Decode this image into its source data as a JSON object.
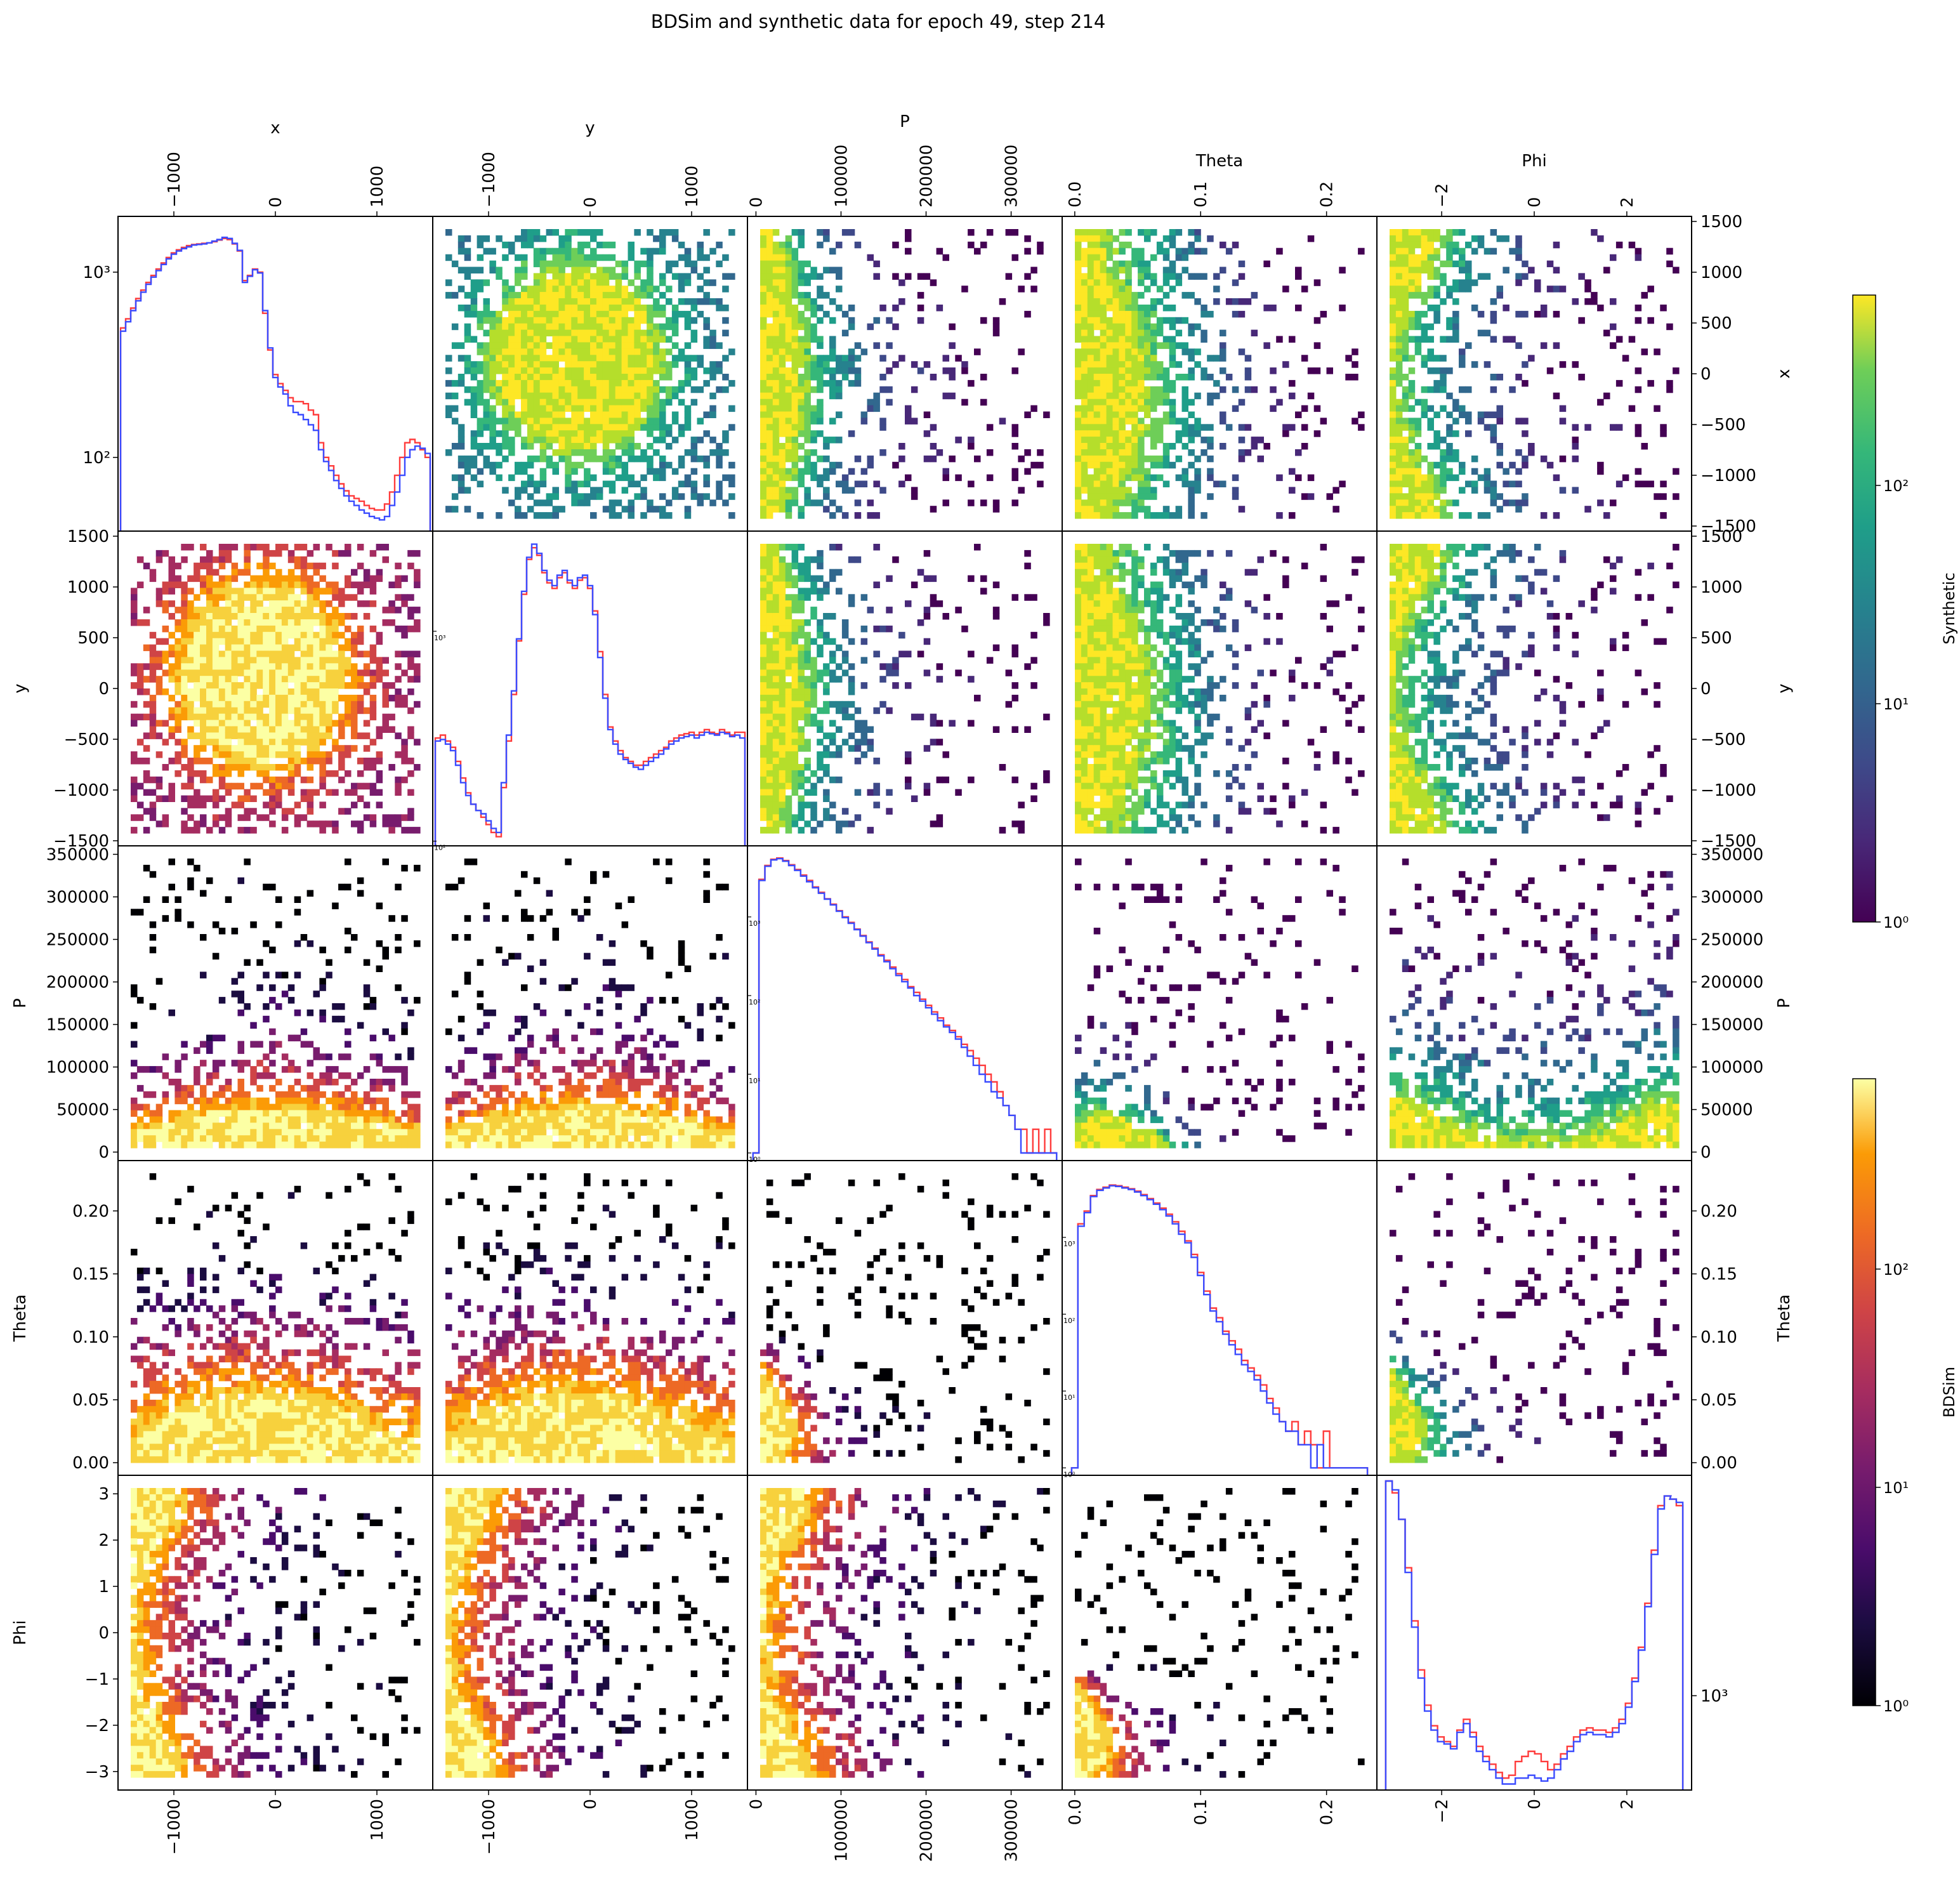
{
  "title": "BDSim and synthetic data for epoch 49, step 214",
  "colors": {
    "bdsim_line": "#ff3b3b",
    "synthetic_line": "#3a4bff",
    "frame": "#000000"
  },
  "colorbars": [
    {
      "label": "Synthetic",
      "cmap": "viridis",
      "ticks": [
        "10⁰",
        "10¹",
        "10²"
      ],
      "scale": "log",
      "range": [
        1,
        800
      ]
    },
    {
      "label": "BDSim",
      "cmap": "inferno",
      "ticks": [
        "10⁰",
        "10¹",
        "10²"
      ],
      "scale": "log",
      "range": [
        1,
        800
      ]
    }
  ],
  "chart_data": {
    "type": "heatmap",
    "description_layout": "5x5 pair grid: upper triangle = Synthetic 2D histograms, lower triangle = BDSim 2D histograms, diagonal = 1D histograms (red = BDSim, blue = Synthetic) with log y-scale",
    "variables": [
      {
        "name": "x",
        "range": [
          -1550,
          1550
        ],
        "ticks": [
          -1000,
          0,
          1000
        ],
        "tick_labels": [
          "−1000",
          "0",
          "1000"
        ],
        "y_ticks_2d": [
          -1500,
          -1000,
          -500,
          0,
          500,
          1000,
          1500
        ],
        "y_tick_labels_2d": [
          "−1500",
          "−1000",
          "−500",
          "0",
          "500",
          "1000",
          "1500"
        ]
      },
      {
        "name": "y",
        "range": [
          -1550,
          1550
        ],
        "ticks": [
          -1000,
          0,
          1000
        ],
        "tick_labels": [
          "−1000",
          "0",
          "1000"
        ],
        "y_ticks_2d": [
          -1500,
          -1000,
          -500,
          0,
          500,
          1000,
          1500
        ],
        "y_tick_labels_2d": [
          "−1500",
          "−1000",
          "−500",
          "0",
          "500",
          "1000",
          "1500"
        ]
      },
      {
        "name": "P",
        "range": [
          -10000,
          360000
        ],
        "ticks": [
          0,
          100000,
          200000,
          300000
        ],
        "tick_labels": [
          "0",
          "100000",
          "200000",
          "300000"
        ],
        "y_ticks_2d": [
          0,
          50000,
          100000,
          150000,
          200000,
          250000,
          300000,
          350000
        ],
        "y_tick_labels_2d": [
          "0",
          "50000",
          "100000",
          "150000",
          "200000",
          "250000",
          "300000",
          "350000"
        ]
      },
      {
        "name": "Theta",
        "range": [
          -0.01,
          0.24
        ],
        "ticks": [
          0,
          0.1,
          0.2
        ],
        "tick_labels": [
          "0.0",
          "0.1",
          "0.2"
        ],
        "y_ticks_2d": [
          0,
          0.05,
          0.1,
          0.15,
          0.2
        ],
        "y_tick_labels_2d": [
          "0.00",
          "0.05",
          "0.10",
          "0.15",
          "0.20"
        ]
      },
      {
        "name": "Phi",
        "range": [
          -3.4,
          3.4
        ],
        "ticks": [
          -2,
          0,
          2
        ],
        "tick_labels": [
          "−2",
          "0",
          "2"
        ],
        "y_ticks_2d": [
          -3,
          -2,
          -1,
          0,
          1,
          2,
          3
        ],
        "y_tick_labels_2d": [
          "−3",
          "−2",
          "−1",
          "0",
          "1",
          "2",
          "3"
        ]
      }
    ],
    "diagonal": [
      {
        "variable": "x",
        "log_range": [
          40,
          2000
        ],
        "y_ticks": [
          100,
          1000
        ],
        "y_tick_labels": [
          "10²",
          "10³"
        ],
        "x": [
          -1500,
          -1450,
          -1400,
          -1350,
          -1300,
          -1250,
          -1200,
          -1150,
          -1100,
          -1050,
          -1000,
          -950,
          -900,
          -850,
          -800,
          -750,
          -700,
          -650,
          -600,
          -550,
          -500,
          -450,
          -400,
          -350,
          -300,
          -250,
          -200,
          -150,
          -100,
          -50,
          0,
          50,
          100,
          150,
          200,
          250,
          300,
          350,
          400,
          450,
          500,
          550,
          600,
          650,
          700,
          750,
          800,
          850,
          900,
          950,
          1000,
          1050,
          1100,
          1150,
          1200,
          1250,
          1300,
          1350,
          1400,
          1450,
          1500
        ],
        "bdsim": [
          500,
          560,
          640,
          720,
          800,
          880,
          960,
          1040,
          1120,
          1200,
          1270,
          1320,
          1360,
          1390,
          1410,
          1420,
          1430,
          1440,
          1460,
          1490,
          1520,
          1500,
          1420,
          1300,
          900,
          960,
          1040,
          1000,
          600,
          380,
          280,
          250,
          230,
          210,
          200,
          200,
          195,
          180,
          170,
          120,
          100,
          90,
          80,
          72,
          66,
          62,
          60,
          58,
          55,
          53,
          52,
          52,
          56,
          65,
          80,
          100,
          120,
          125,
          120,
          110,
          100
        ],
        "synthetic": [
          480,
          540,
          620,
          700,
          780,
          860,
          940,
          1020,
          1100,
          1180,
          1250,
          1300,
          1340,
          1370,
          1400,
          1410,
          1420,
          1440,
          1470,
          1500,
          1540,
          1520,
          1430,
          1310,
          880,
          950,
          1030,
          990,
          620,
          390,
          270,
          240,
          220,
          190,
          175,
          170,
          160,
          150,
          140,
          110,
          95,
          85,
          75,
          68,
          62,
          58,
          55,
          52,
          50,
          48,
          47,
          46,
          48,
          55,
          65,
          80,
          100,
          110,
          115,
          112,
          105
        ]
      },
      {
        "variable": "y",
        "log_range": [
          95,
          3000
        ],
        "y_ticks": [
          100,
          1000
        ],
        "y_tick_labels": [
          "10²",
          "10³"
        ],
        "x": [
          -1500,
          -1450,
          -1400,
          -1350,
          -1300,
          -1250,
          -1200,
          -1150,
          -1100,
          -1050,
          -1000,
          -950,
          -900,
          -850,
          -800,
          -750,
          -700,
          -650,
          -600,
          -550,
          -500,
          -450,
          -400,
          -350,
          -300,
          -250,
          -200,
          -150,
          -100,
          -50,
          0,
          50,
          100,
          150,
          200,
          250,
          300,
          350,
          400,
          450,
          500,
          550,
          600,
          650,
          700,
          750,
          800,
          850,
          900,
          950,
          1000,
          1050,
          1100,
          1150,
          1200,
          1250,
          1300,
          1350,
          1400,
          1450,
          1500
        ],
        "bdsim": [
          310,
          320,
          300,
          280,
          240,
          200,
          170,
          150,
          140,
          130,
          120,
          110,
          105,
          180,
          300,
          500,
          900,
          1500,
          2200,
          2500,
          2300,
          1900,
          1700,
          1600,
          1800,
          1900,
          1700,
          1600,
          1750,
          1800,
          1600,
          1250,
          800,
          500,
          350,
          300,
          270,
          250,
          240,
          230,
          230,
          240,
          250,
          260,
          270,
          280,
          300,
          310,
          320,
          325,
          330,
          320,
          330,
          340,
          330,
          325,
          340,
          330,
          320,
          330,
          330
        ],
        "synthetic": [
          300,
          305,
          290,
          270,
          230,
          190,
          165,
          150,
          140,
          135,
          125,
          115,
          110,
          190,
          320,
          520,
          920,
          1550,
          2250,
          2600,
          2350,
          1950,
          1750,
          1650,
          1850,
          1950,
          1750,
          1650,
          1800,
          1850,
          1650,
          1200,
          750,
          480,
          340,
          290,
          260,
          245,
          235,
          225,
          220,
          230,
          240,
          250,
          260,
          275,
          290,
          300,
          310,
          315,
          320,
          310,
          320,
          330,
          325,
          320,
          330,
          325,
          315,
          320,
          310
        ]
      },
      {
        "variable": "P",
        "log_range": [
          0.8,
          8000
        ],
        "y_ticks": [
          1,
          10,
          100,
          1000
        ],
        "y_tick_labels": [
          "10⁰",
          "10¹",
          "10²",
          "10³"
        ],
        "x": [
          0,
          7000,
          14000,
          21000,
          28000,
          35000,
          42000,
          49000,
          56000,
          63000,
          70000,
          77000,
          84000,
          91000,
          98000,
          105000,
          112000,
          119000,
          126000,
          133000,
          140000,
          147000,
          154000,
          161000,
          168000,
          175000,
          182000,
          189000,
          196000,
          203000,
          210000,
          217000,
          224000,
          231000,
          238000,
          245000,
          252000,
          259000,
          266000,
          273000,
          280000,
          287000,
          294000,
          301000,
          308000,
          315000,
          322000,
          329000,
          336000,
          343000,
          350000
        ],
        "bdsim": [
          1,
          3000,
          4500,
          5400,
          5600,
          5200,
          4600,
          4000,
          3400,
          2900,
          2400,
          2050,
          1700,
          1450,
          1200,
          1000,
          850,
          700,
          580,
          480,
          400,
          330,
          280,
          230,
          190,
          160,
          130,
          110,
          90,
          75,
          62,
          52,
          42,
          36,
          30,
          24,
          20,
          16,
          13,
          10,
          8,
          6,
          4,
          3,
          2,
          2,
          1,
          2,
          1,
          2,
          1
        ],
        "synthetic": [
          1,
          2900,
          4400,
          5300,
          5500,
          5100,
          4500,
          3900,
          3300,
          2800,
          2350,
          2000,
          1680,
          1420,
          1180,
          980,
          830,
          690,
          570,
          470,
          390,
          320,
          270,
          220,
          180,
          150,
          125,
          100,
          85,
          70,
          58,
          48,
          40,
          34,
          28,
          22,
          17,
          13,
          10,
          8,
          6,
          5,
          4,
          3,
          2,
          1,
          1,
          1,
          1,
          1,
          1
        ]
      },
      {
        "variable": "Theta",
        "log_range": [
          0.8,
          10000
        ],
        "y_ticks": [
          1,
          10,
          100,
          1000
        ],
        "y_tick_labels": [
          "10⁰",
          "10¹",
          "10²",
          "10³"
        ],
        "x": [
          0,
          0.005,
          0.01,
          0.015,
          0.02,
          0.025,
          0.03,
          0.035,
          0.04,
          0.045,
          0.05,
          0.055,
          0.06,
          0.065,
          0.07,
          0.075,
          0.08,
          0.085,
          0.09,
          0.095,
          0.1,
          0.105,
          0.11,
          0.115,
          0.12,
          0.125,
          0.13,
          0.135,
          0.14,
          0.145,
          0.15,
          0.155,
          0.16,
          0.165,
          0.17,
          0.175,
          0.18,
          0.185,
          0.19,
          0.195,
          0.2,
          0.205,
          0.21,
          0.215,
          0.22,
          0.225,
          0.23
        ],
        "bdsim": [
          1,
          1500,
          2200,
          3500,
          4200,
          4500,
          4800,
          4700,
          4500,
          4300,
          4000,
          3600,
          3200,
          2800,
          2400,
          2000,
          1600,
          1200,
          900,
          600,
          350,
          200,
          120,
          90,
          60,
          45,
          35,
          25,
          20,
          16,
          12,
          8,
          6,
          4,
          3,
          4,
          2,
          3,
          2,
          1,
          3,
          1,
          1,
          1,
          1,
          1,
          1
        ],
        "synthetic": [
          1,
          1400,
          2100,
          3400,
          4100,
          4400,
          4700,
          4600,
          4400,
          4200,
          3900,
          3500,
          3100,
          2700,
          2300,
          1900,
          1500,
          1100,
          850,
          550,
          320,
          180,
          110,
          80,
          55,
          40,
          30,
          22,
          18,
          14,
          10,
          7,
          5,
          4,
          3,
          3,
          2,
          2,
          1,
          2,
          1,
          1,
          1,
          1,
          1,
          1,
          1
        ]
      },
      {
        "variable": "Phi",
        "log_range": [
          600,
          3300
        ],
        "y_ticks": [
          1000
        ],
        "y_tick_labels": [
          "10³"
        ],
        "x": [
          -3.14,
          -3.0,
          -2.86,
          -2.72,
          -2.58,
          -2.44,
          -2.3,
          -2.16,
          -2.02,
          -1.88,
          -1.74,
          -1.6,
          -1.46,
          -1.32,
          -1.18,
          -1.04,
          -0.9,
          -0.76,
          -0.62,
          -0.48,
          -0.34,
          -0.2,
          -0.06,
          0.08,
          0.22,
          0.36,
          0.5,
          0.64,
          0.78,
          0.92,
          1.06,
          1.2,
          1.34,
          1.48,
          1.62,
          1.76,
          1.9,
          2.04,
          2.18,
          2.32,
          2.46,
          2.6,
          2.74,
          2.88,
          3.0,
          3.14
        ],
        "bdsim": [
          3200,
          3000,
          2600,
          2000,
          1500,
          1150,
          950,
          850,
          800,
          780,
          760,
          830,
          880,
          820,
          760,
          720,
          690,
          660,
          640,
          650,
          700,
          720,
          740,
          730,
          700,
          670,
          690,
          730,
          760,
          800,
          830,
          840,
          830,
          830,
          820,
          840,
          880,
          960,
          1100,
          1300,
          1650,
          2200,
          2800,
          2950,
          2900,
          2800
        ],
        "synthetic": [
          3200,
          3050,
          2600,
          1950,
          1450,
          1100,
          920,
          830,
          780,
          770,
          750,
          820,
          860,
          800,
          740,
          700,
          670,
          640,
          620,
          620,
          640,
          640,
          650,
          640,
          630,
          640,
          670,
          710,
          740,
          780,
          810,
          820,
          810,
          810,
          800,
          820,
          860,
          940,
          1080,
          1280,
          1620,
          2150,
          2750,
          2950,
          2900,
          2850
        ]
      }
    ]
  }
}
